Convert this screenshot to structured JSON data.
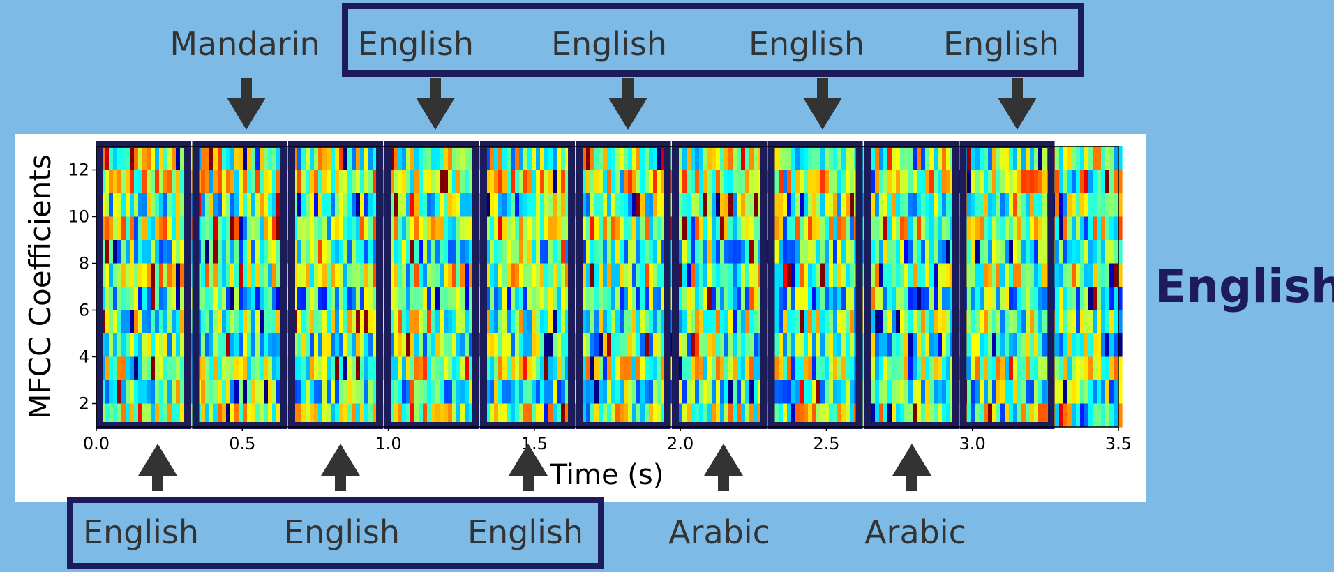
{
  "top_labels": [
    "Mandarin",
    "English",
    "English",
    "English",
    "English"
  ],
  "bottom_labels": [
    "English",
    "English",
    "English",
    "Arabic",
    "Arabic"
  ],
  "prediction": "English",
  "colors": {
    "background": "#7dbbe6",
    "box": "#1c1c5a",
    "arrow": "#333333",
    "label": "#333333"
  },
  "chart_data": {
    "type": "heatmap",
    "xlabel": "Time (s)",
    "ylabel": "MFCC Coefficients",
    "xlim": [
      0.0,
      3.5
    ],
    "ylim": [
      1,
      13
    ],
    "x_ticks": [
      "0.0",
      "0.5",
      "1.0",
      "1.5",
      "2.0",
      "2.5",
      "3.0",
      "3.5"
    ],
    "y_ticks": [
      "2",
      "4",
      "6",
      "8",
      "10",
      "12"
    ],
    "colormap": "jet",
    "window_count": 10
  }
}
